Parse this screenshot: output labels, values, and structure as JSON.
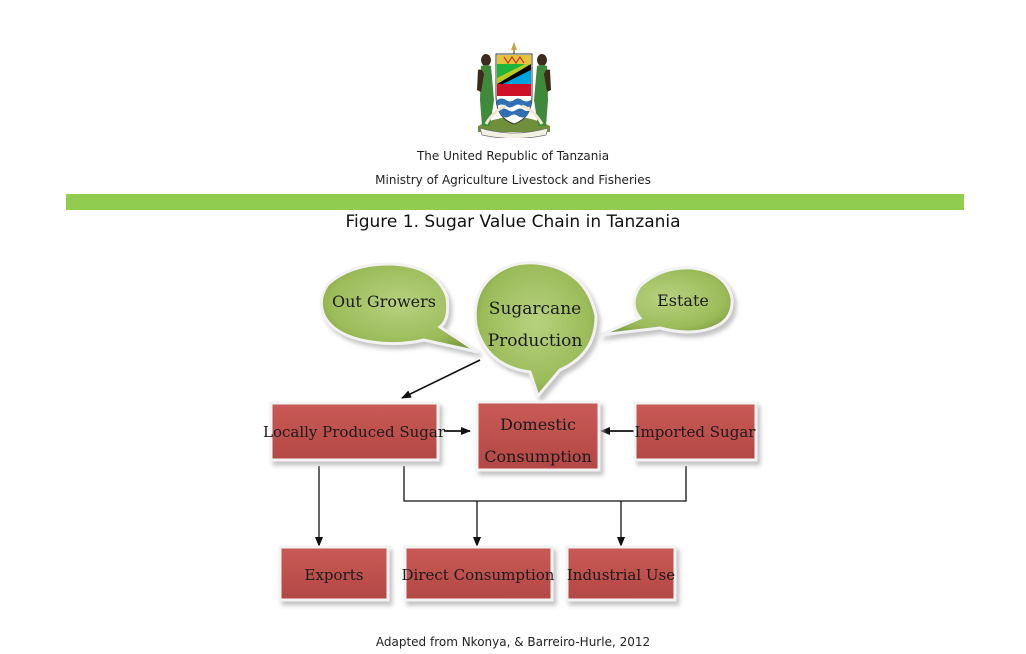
{
  "header": {
    "emblem": "coat-of-arms-tanzania",
    "republic": "The United Republic of Tanzania",
    "ministry": "Ministry of Agriculture Livestock and Fisheries",
    "bar_color": "#8fcc50"
  },
  "figure": {
    "title": "Figure 1. Sugar Value Chain in Tanzania"
  },
  "diagram": {
    "bubbles": {
      "out_growers": "Out Growers",
      "sugarcane_line1": "Sugarcane",
      "sugarcane_line2": "Production",
      "estate": "Estate"
    },
    "boxes": {
      "locally_produced": "Locally Produced Sugar",
      "domestic_line1": "Domestic",
      "domestic_line2": "Consumption",
      "imported": "Imported Sugar",
      "exports": "Exports",
      "direct": "Direct Consumption",
      "industrial": "Industrial Use"
    },
    "colors": {
      "bubble_fill": "#9bbb59",
      "box_fill": "#c0504d"
    }
  },
  "footer": {
    "source": "Adapted from Nkonya, & Barreiro-Hurle, 2012"
  }
}
